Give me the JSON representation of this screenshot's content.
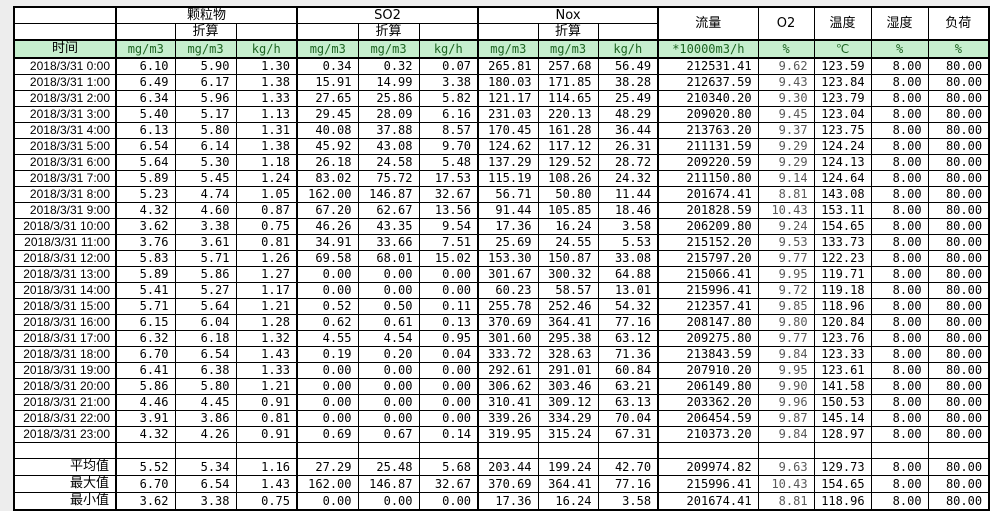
{
  "table": {
    "header": {
      "time_label": "时间",
      "groups": [
        {
          "label": "颗粒物",
          "sub": "折算",
          "units": [
            "mg/m3",
            "mg/m3",
            "kg/h"
          ]
        },
        {
          "label": "SO2",
          "sub": "折算",
          "units": [
            "mg/m3",
            "mg/m3",
            "kg/h"
          ]
        },
        {
          "label": "Nox",
          "sub": "折算",
          "units": [
            "mg/m3",
            "mg/m3",
            "kg/h"
          ]
        }
      ],
      "singles": [
        {
          "label": "流量",
          "unit": "*10000m3/h"
        },
        {
          "label": "O2",
          "unit": "%"
        },
        {
          "label": "温度",
          "unit": "℃"
        },
        {
          "label": "湿度",
          "unit": "%"
        },
        {
          "label": "负荷",
          "unit": "%"
        }
      ]
    },
    "rows": [
      {
        "time": "2018/3/31 0:00",
        "values": [
          "6.10",
          "5.90",
          "1.30",
          "0.34",
          "0.32",
          "0.07",
          "265.81",
          "257.68",
          "56.49",
          "212531.41",
          "9.62",
          "123.59",
          "8.00",
          "80.00"
        ]
      },
      {
        "time": "2018/3/31 1:00",
        "values": [
          "6.49",
          "6.17",
          "1.38",
          "15.91",
          "14.99",
          "3.38",
          "180.03",
          "171.85",
          "38.28",
          "212637.59",
          "9.43",
          "123.84",
          "8.00",
          "80.00"
        ]
      },
      {
        "time": "2018/3/31 2:00",
        "values": [
          "6.34",
          "5.96",
          "1.33",
          "27.65",
          "25.86",
          "5.82",
          "121.17",
          "114.65",
          "25.49",
          "210340.20",
          "9.30",
          "123.79",
          "8.00",
          "80.00"
        ]
      },
      {
        "time": "2018/3/31 3:00",
        "values": [
          "5.40",
          "5.17",
          "1.13",
          "29.45",
          "28.09",
          "6.16",
          "231.03",
          "220.13",
          "48.29",
          "209020.80",
          "9.45",
          "123.04",
          "8.00",
          "80.00"
        ]
      },
      {
        "time": "2018/3/31 4:00",
        "values": [
          "6.13",
          "5.80",
          "1.31",
          "40.08",
          "37.88",
          "8.57",
          "170.45",
          "161.28",
          "36.44",
          "213763.20",
          "9.37",
          "123.75",
          "8.00",
          "80.00"
        ]
      },
      {
        "time": "2018/3/31 5:00",
        "values": [
          "6.54",
          "6.14",
          "1.38",
          "45.92",
          "43.08",
          "9.70",
          "124.62",
          "117.12",
          "26.31",
          "211131.59",
          "9.29",
          "124.24",
          "8.00",
          "80.00"
        ]
      },
      {
        "time": "2018/3/31 6:00",
        "values": [
          "5.64",
          "5.30",
          "1.18",
          "26.18",
          "24.58",
          "5.48",
          "137.29",
          "129.52",
          "28.72",
          "209220.59",
          "9.29",
          "124.13",
          "8.00",
          "80.00"
        ]
      },
      {
        "time": "2018/3/31 7:00",
        "values": [
          "5.89",
          "5.45",
          "1.24",
          "83.02",
          "75.72",
          "17.53",
          "115.19",
          "108.26",
          "24.32",
          "211150.80",
          "9.14",
          "124.64",
          "8.00",
          "80.00"
        ]
      },
      {
        "time": "2018/3/31 8:00",
        "values": [
          "5.23",
          "4.74",
          "1.05",
          "162.00",
          "146.87",
          "32.67",
          "56.71",
          "50.80",
          "11.44",
          "201674.41",
          "8.81",
          "143.08",
          "8.00",
          "80.00"
        ]
      },
      {
        "time": "2018/3/31 9:00",
        "values": [
          "4.32",
          "4.60",
          "0.87",
          "67.20",
          "62.67",
          "13.56",
          "91.44",
          "105.85",
          "18.46",
          "201828.59",
          "10.43",
          "153.11",
          "8.00",
          "80.00"
        ]
      },
      {
        "time": "2018/3/31 10:00",
        "values": [
          "3.62",
          "3.38",
          "0.75",
          "46.26",
          "43.35",
          "9.54",
          "17.36",
          "16.24",
          "3.58",
          "206209.80",
          "9.24",
          "154.65",
          "8.00",
          "80.00"
        ]
      },
      {
        "time": "2018/3/31 11:00",
        "values": [
          "3.76",
          "3.61",
          "0.81",
          "34.91",
          "33.66",
          "7.51",
          "25.69",
          "24.55",
          "5.53",
          "215152.20",
          "9.53",
          "133.73",
          "8.00",
          "80.00"
        ]
      },
      {
        "time": "2018/3/31 12:00",
        "values": [
          "5.83",
          "5.71",
          "1.26",
          "69.58",
          "68.01",
          "15.02",
          "153.30",
          "150.87",
          "33.08",
          "215797.20",
          "9.77",
          "122.23",
          "8.00",
          "80.00"
        ]
      },
      {
        "time": "2018/3/31 13:00",
        "values": [
          "5.89",
          "5.86",
          "1.27",
          "0.00",
          "0.00",
          "0.00",
          "301.67",
          "300.32",
          "64.88",
          "215066.41",
          "9.95",
          "119.71",
          "8.00",
          "80.00"
        ]
      },
      {
        "time": "2018/3/31 14:00",
        "values": [
          "5.41",
          "5.27",
          "1.17",
          "0.00",
          "0.00",
          "0.00",
          "60.23",
          "58.57",
          "13.01",
          "215996.41",
          "9.72",
          "119.18",
          "8.00",
          "80.00"
        ]
      },
      {
        "time": "2018/3/31 15:00",
        "values": [
          "5.71",
          "5.64",
          "1.21",
          "0.52",
          "0.50",
          "0.11",
          "255.78",
          "252.46",
          "54.32",
          "212357.41",
          "9.85",
          "118.96",
          "8.00",
          "80.00"
        ]
      },
      {
        "time": "2018/3/31 16:00",
        "values": [
          "6.15",
          "6.04",
          "1.28",
          "0.62",
          "0.61",
          "0.13",
          "370.69",
          "364.41",
          "77.16",
          "208147.80",
          "9.80",
          "120.84",
          "8.00",
          "80.00"
        ]
      },
      {
        "time": "2018/3/31 17:00",
        "values": [
          "6.32",
          "6.18",
          "1.32",
          "4.55",
          "4.54",
          "0.95",
          "301.60",
          "295.38",
          "63.12",
          "209275.80",
          "9.77",
          "123.76",
          "8.00",
          "80.00"
        ]
      },
      {
        "time": "2018/3/31 18:00",
        "values": [
          "6.70",
          "6.54",
          "1.43",
          "0.19",
          "0.20",
          "0.04",
          "333.72",
          "328.63",
          "71.36",
          "213843.59",
          "9.84",
          "123.33",
          "8.00",
          "80.00"
        ]
      },
      {
        "time": "2018/3/31 19:00",
        "values": [
          "6.41",
          "6.38",
          "1.33",
          "0.00",
          "0.00",
          "0.00",
          "292.61",
          "291.01",
          "60.84",
          "207910.20",
          "9.95",
          "123.61",
          "8.00",
          "80.00"
        ]
      },
      {
        "time": "2018/3/31 20:00",
        "values": [
          "5.86",
          "5.80",
          "1.21",
          "0.00",
          "0.00",
          "0.00",
          "306.62",
          "303.46",
          "63.21",
          "206149.80",
          "9.90",
          "141.58",
          "8.00",
          "80.00"
        ]
      },
      {
        "time": "2018/3/31 21:00",
        "values": [
          "4.46",
          "4.45",
          "0.91",
          "0.00",
          "0.00",
          "0.00",
          "310.41",
          "309.12",
          "63.13",
          "203362.20",
          "9.96",
          "150.53",
          "8.00",
          "80.00"
        ]
      },
      {
        "time": "2018/3/31 22:00",
        "values": [
          "3.91",
          "3.86",
          "0.81",
          "0.00",
          "0.00",
          "0.00",
          "339.26",
          "334.29",
          "70.04",
          "206454.59",
          "9.87",
          "145.14",
          "8.00",
          "80.00"
        ]
      },
      {
        "time": "2018/3/31 23:00",
        "values": [
          "4.32",
          "4.26",
          "0.91",
          "0.69",
          "0.67",
          "0.14",
          "319.95",
          "315.24",
          "67.31",
          "210373.20",
          "9.84",
          "128.97",
          "8.00",
          "80.00"
        ]
      }
    ],
    "summary": [
      {
        "label": "平均值",
        "values": [
          "5.52",
          "5.34",
          "1.16",
          "27.29",
          "25.48",
          "5.68",
          "203.44",
          "199.24",
          "42.70",
          "209974.82",
          "9.63",
          "129.73",
          "8.00",
          "80.00"
        ]
      },
      {
        "label": "最大值",
        "values": [
          "6.70",
          "6.54",
          "1.43",
          "162.00",
          "146.87",
          "32.67",
          "370.69",
          "364.41",
          "77.16",
          "215996.41",
          "10.43",
          "154.65",
          "8.00",
          "80.00"
        ]
      },
      {
        "label": "最小值",
        "values": [
          "3.62",
          "3.38",
          "0.75",
          "0.00",
          "0.00",
          "0.00",
          "17.36",
          "16.24",
          "3.58",
          "201674.41",
          "8.81",
          "118.96",
          "8.00",
          "80.00"
        ]
      }
    ],
    "colors": {
      "header_fill": "#c6efce",
      "header_text": "#1e6423",
      "grid": "#000000"
    }
  }
}
